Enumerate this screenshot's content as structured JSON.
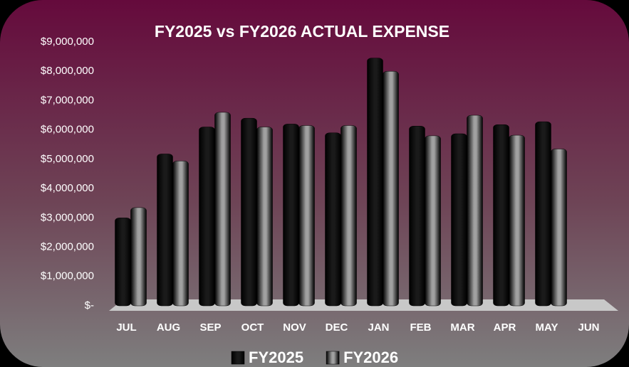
{
  "chart_data": {
    "type": "bar",
    "title": "FY2025 vs FY2026 ACTUAL EXPENSE",
    "categories": [
      "JUL",
      "AUG",
      "SEP",
      "OCT",
      "NOV",
      "DEC",
      "JAN",
      "FEB",
      "MAR",
      "APR",
      "MAY",
      "JUN"
    ],
    "series": [
      {
        "name": "FY2025",
        "color": "#1a1a1a",
        "values": [
          3000000,
          5180000,
          6100000,
          6400000,
          6200000,
          5900000,
          8450000,
          6130000,
          5870000,
          6180000,
          6280000,
          null
        ]
      },
      {
        "name": "FY2026",
        "color": "#a0a0a0",
        "values": [
          3350000,
          4940000,
          6600000,
          6100000,
          6150000,
          6150000,
          8000000,
          5800000,
          6500000,
          5820000,
          5350000,
          null
        ]
      }
    ],
    "ylim": [
      0,
      9000000
    ],
    "yticks": [
      {
        "value": 0,
        "label": "$-"
      },
      {
        "value": 1000000,
        "label": "$1,000,000"
      },
      {
        "value": 2000000,
        "label": "$2,000,000"
      },
      {
        "value": 3000000,
        "label": "$3,000,000"
      },
      {
        "value": 4000000,
        "label": "$4,000,000"
      },
      {
        "value": 5000000,
        "label": "$5,000,000"
      },
      {
        "value": 6000000,
        "label": "$6,000,000"
      },
      {
        "value": 7000000,
        "label": "$7,000,000"
      },
      {
        "value": 8000000,
        "label": "$8,000,000"
      },
      {
        "value": 9000000,
        "label": "$9,000,000"
      }
    ],
    "legend": "bottom"
  }
}
